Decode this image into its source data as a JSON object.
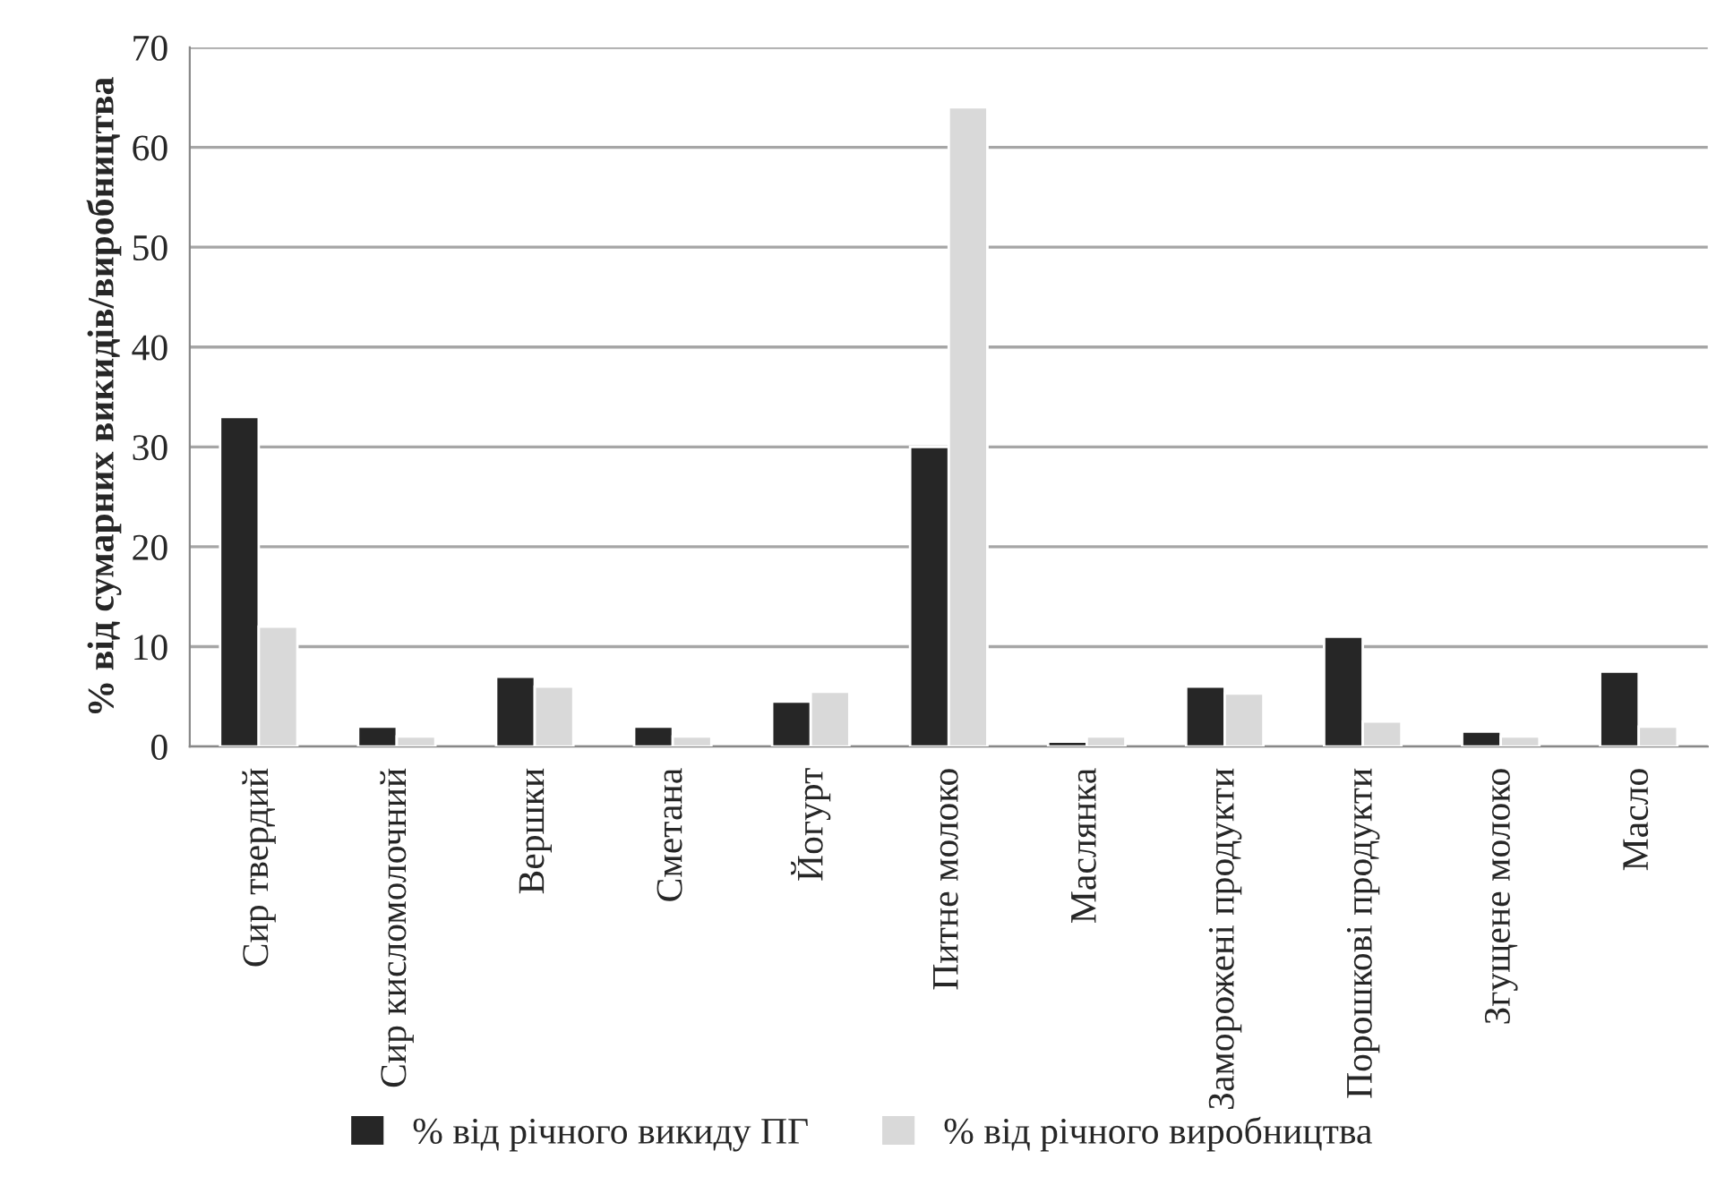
{
  "chart_data": {
    "type": "bar",
    "ylabel": "% від сумарних викидів/виробництва",
    "categories": [
      "Сир твердий",
      "Сир кисломолочний",
      "Вершки",
      "Сметана",
      "Йогурт",
      "Питне молоко",
      "Маслянка",
      "Заморожені продукти",
      "Порошкові продукти",
      "Згущене молоко",
      "Масло"
    ],
    "series": [
      {
        "name": "% від річного викиду ПГ",
        "color": "#262626",
        "values": [
          33,
          2,
          7,
          2,
          4.5,
          30,
          0.5,
          6,
          11,
          1.5,
          7.5
        ]
      },
      {
        "name": "% від річного виробництва",
        "color": "#d9d9d9",
        "values": [
          12,
          1,
          6,
          1,
          5.5,
          64,
          1,
          5.3,
          2.5,
          1,
          2
        ]
      }
    ],
    "ylim": [
      0,
      70
    ],
    "yticks": [
      0,
      10,
      20,
      30,
      40,
      50,
      60,
      70
    ],
    "grid": "y",
    "legend": "bottom"
  }
}
